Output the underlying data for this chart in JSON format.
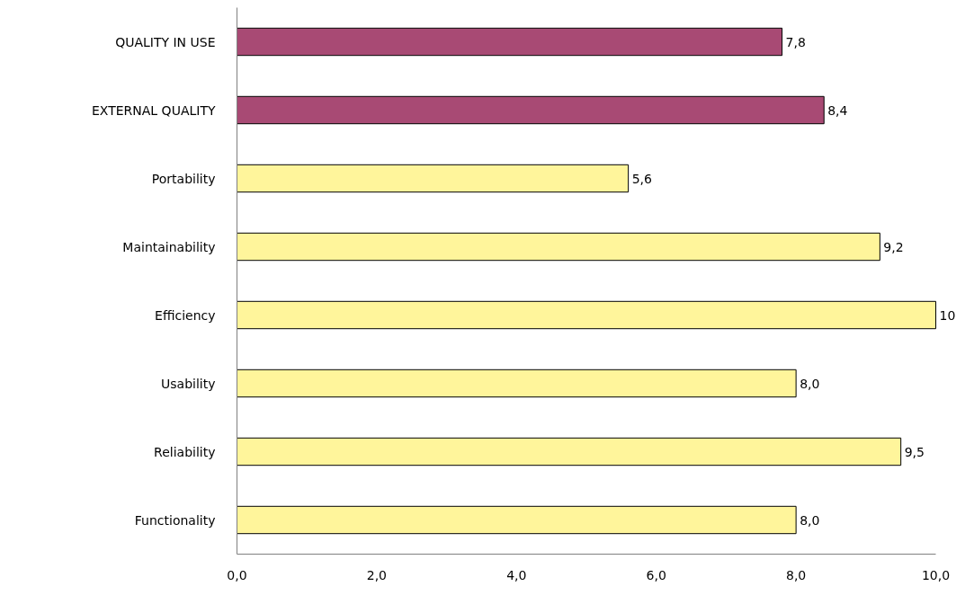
{
  "chart_data": {
    "type": "bar",
    "orientation": "horizontal",
    "categories": [
      "QUALITY IN USE",
      "EXTERNAL QUALITY",
      "Portability",
      "Maintainability",
      "Efficiency",
      "Usability",
      "Reliability",
      "Functionality"
    ],
    "values": [
      7.8,
      8.4,
      5.6,
      9.2,
      10,
      8.0,
      9.5,
      8.0
    ],
    "colors": [
      "#a84a74",
      "#a84a74",
      "#fff59b",
      "#fff59b",
      "#fff59b",
      "#fff59b",
      "#fff59b",
      "#fff59b"
    ],
    "value_labels": [
      "7,8",
      "8,4",
      "5,6",
      "9,2",
      "10",
      "8,0",
      "9,5",
      "8,0"
    ],
    "xlim": [
      0,
      10
    ],
    "xticks": [
      {
        "value": 0,
        "label": "0,0"
      },
      {
        "value": 2,
        "label": "2,0"
      },
      {
        "value": 4,
        "label": "4,0"
      },
      {
        "value": 6,
        "label": "6,0"
      },
      {
        "value": 8,
        "label": "8,0"
      },
      {
        "value": 10,
        "label": "10,0"
      }
    ],
    "grid": false,
    "legend": false
  }
}
